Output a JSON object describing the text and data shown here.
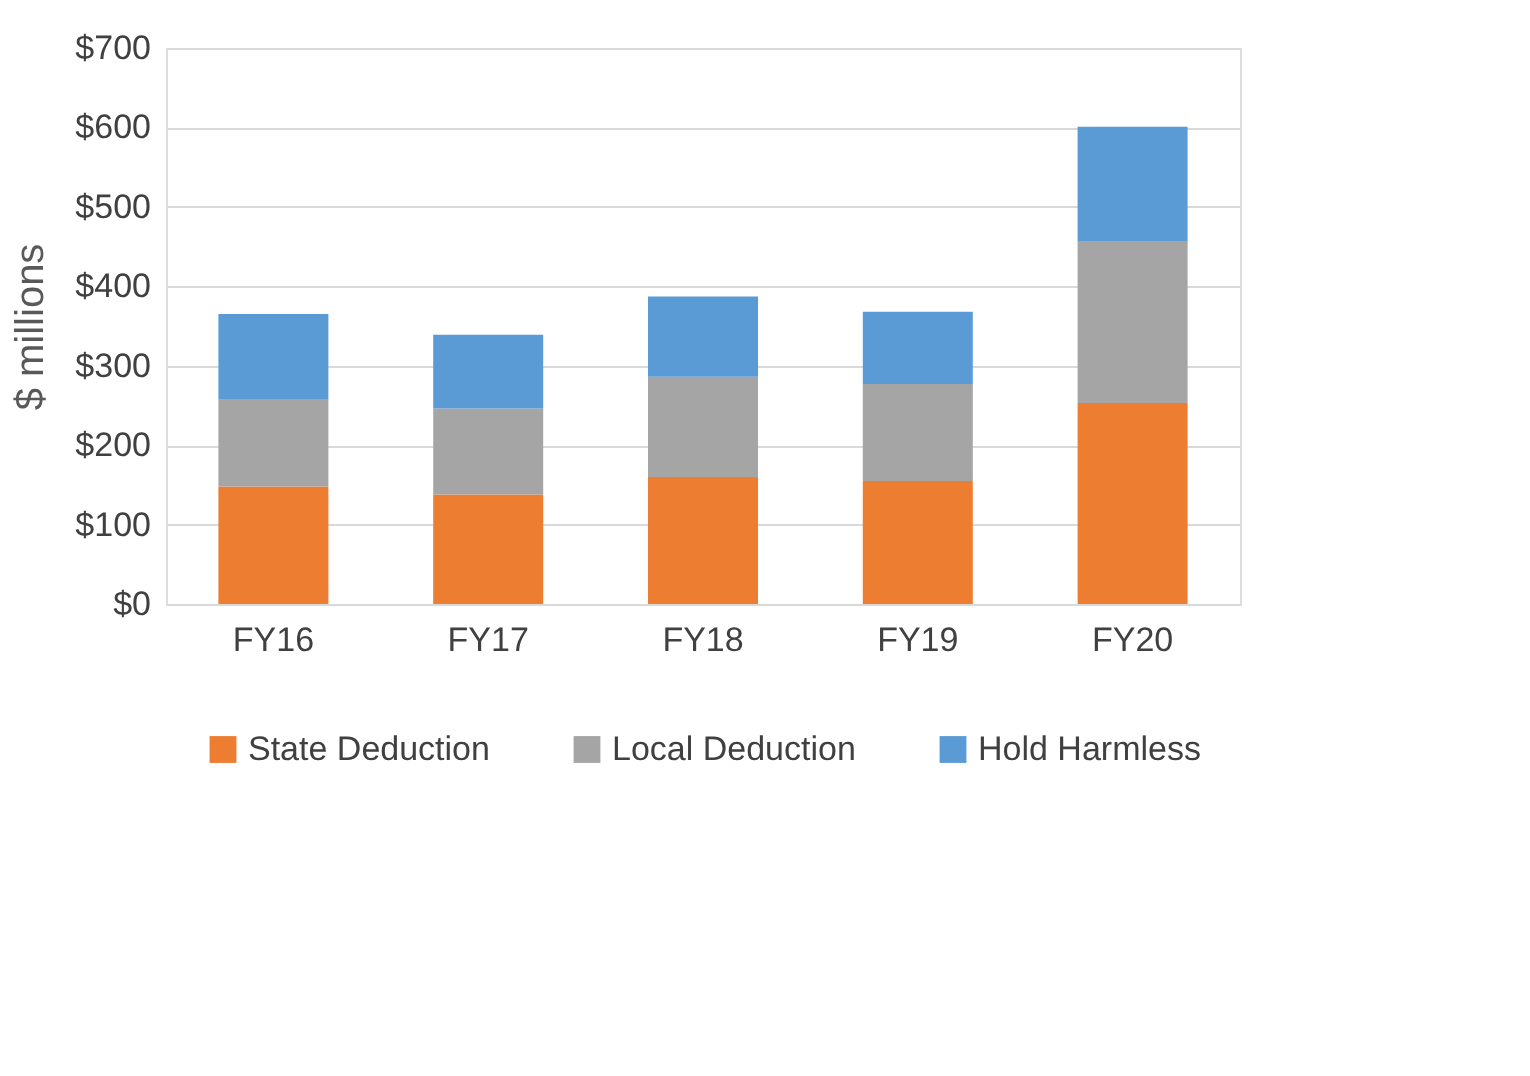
{
  "chart_data": {
    "type": "bar",
    "stacked": true,
    "ylabel": "$ millions",
    "categories": [
      "FY16",
      "FY17",
      "FY18",
      "FY19",
      "FY20"
    ],
    "series": [
      {
        "name": "State Deduction",
        "color": "#ed7d31",
        "values": [
          148,
          138,
          160,
          155,
          253
        ]
      },
      {
        "name": "Local Deduction",
        "color": "#a5a5a5",
        "values": [
          110,
          108,
          126,
          122,
          203
        ]
      },
      {
        "name": "Hold Harmless",
        "color": "#5b9bd5",
        "values": [
          107,
          93,
          101,
          91,
          145
        ]
      }
    ],
    "ylim": [
      0,
      700
    ],
    "yticks": [
      {
        "value": 0,
        "label": "$0"
      },
      {
        "value": 100,
        "label": "$100"
      },
      {
        "value": 200,
        "label": "$200"
      },
      {
        "value": 300,
        "label": "$300"
      },
      {
        "value": 400,
        "label": "$400"
      },
      {
        "value": 500,
        "label": "$500"
      },
      {
        "value": 600,
        "label": "$600"
      },
      {
        "value": 700,
        "label": "$700"
      }
    ],
    "grid": "y",
    "legend": "bottom"
  }
}
